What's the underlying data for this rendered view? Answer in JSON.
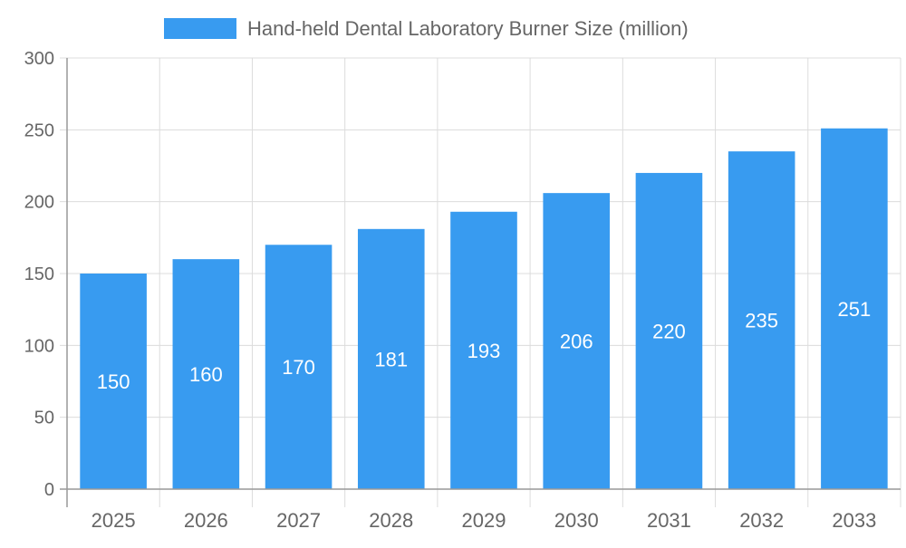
{
  "chart_data": {
    "type": "bar",
    "title": "",
    "xlabel": "",
    "ylabel": "",
    "categories": [
      "2025",
      "2026",
      "2027",
      "2028",
      "2029",
      "2030",
      "2031",
      "2032",
      "2033"
    ],
    "series": [
      {
        "name": "Hand-held Dental Laboratory Burner Size (million)",
        "values": [
          150,
          160,
          170,
          181,
          193,
          206,
          220,
          235,
          251
        ],
        "color": "#389BF0"
      }
    ],
    "ylim": [
      0,
      300
    ],
    "yticks": [
      0,
      50,
      100,
      150,
      200,
      250,
      300
    ],
    "grid": true,
    "legend": "top",
    "data_labels": true
  }
}
